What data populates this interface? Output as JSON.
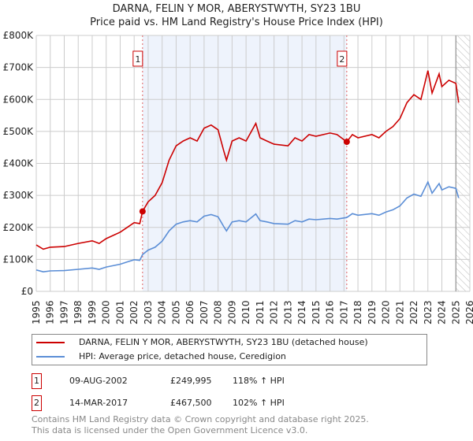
{
  "title": "DARNA, FELIN Y MOR, ABERYSTWYTH, SY23 1BU",
  "subtitle": "Price paid vs. HM Land Registry's House Price Index (HPI)",
  "colors": {
    "property": "#cc0000",
    "hpi": "#5b8ed6",
    "shade": "#eef3fc"
  },
  "chart_data": {
    "type": "line",
    "ylim": [
      0,
      800000
    ],
    "xlim": [
      1995,
      2026
    ],
    "yticks": [
      {
        "v": 0,
        "label": "£0"
      },
      {
        "v": 100000,
        "label": "£100K"
      },
      {
        "v": 200000,
        "label": "£200K"
      },
      {
        "v": 300000,
        "label": "£300K"
      },
      {
        "v": 400000,
        "label": "£400K"
      },
      {
        "v": 500000,
        "label": "£500K"
      },
      {
        "v": 600000,
        "label": "£600K"
      },
      {
        "v": 700000,
        "label": "£700K"
      },
      {
        "v": 800000,
        "label": "£800K"
      }
    ],
    "xticks": [
      "1995",
      "1996",
      "1997",
      "1998",
      "1999",
      "2000",
      "2001",
      "2002",
      "2003",
      "2004",
      "2005",
      "2006",
      "2007",
      "2008",
      "2009",
      "2010",
      "2011",
      "2012",
      "2013",
      "2014",
      "2015",
      "2016",
      "2017",
      "2018",
      "2019",
      "2020",
      "2021",
      "2022",
      "2023",
      "2024",
      "2025",
      "2026"
    ],
    "x": [
      1995,
      1995.5,
      1996,
      1997,
      1998,
      1999,
      1999.5,
      2000,
      2001,
      2001.5,
      2002,
      2002.4,
      2002.6,
      2003,
      2003.5,
      2004,
      2004.5,
      2005,
      2005.5,
      2006,
      2006.5,
      2007,
      2007.5,
      2008,
      2008.4,
      2008.6,
      2009,
      2009.5,
      2010,
      2010.7,
      2011,
      2011.5,
      2012,
      2013,
      2013.5,
      2014,
      2014.5,
      2015,
      2016,
      2016.5,
      2017.2,
      2017.6,
      2018,
      2019,
      2019.5,
      2020,
      2020.5,
      2021,
      2021.5,
      2022,
      2022.5,
      2023,
      2023.3,
      2023.8,
      2024,
      2024.5,
      2025,
      2025.2
    ],
    "series": [
      {
        "name": "DARNA, FELIN Y MOR, ABERYSTWYTH, SY23 1BU (detached house)",
        "color": "#cc0000",
        "values": [
          145,
          132,
          138,
          140,
          150,
          158,
          150,
          165,
          185,
          200,
          215,
          212,
          250,
          280,
          300,
          340,
          410,
          455,
          470,
          480,
          470,
          510,
          520,
          505,
          440,
          410,
          470,
          480,
          470,
          525,
          480,
          470,
          460,
          455,
          480,
          470,
          490,
          485,
          495,
          490,
          467.5,
          490,
          480,
          490,
          480,
          500,
          515,
          540,
          590,
          615,
          600,
          690,
          620,
          680,
          640,
          660,
          650,
          590
        ]
      },
      {
        "name": "HPI: Average price, detached house, Ceredigion",
        "color": "#5b8ed6",
        "values": [
          67,
          61,
          64,
          65,
          69,
          73,
          69,
          76,
          85,
          92,
          99,
          97,
          115,
          129,
          138,
          157,
          189,
          210,
          217,
          221,
          217,
          235,
          240,
          233,
          203,
          189,
          217,
          221,
          217,
          242,
          221,
          217,
          212,
          210,
          221,
          217,
          226,
          224,
          228,
          226,
          231,
          243,
          238,
          243,
          238,
          248,
          255,
          267,
          292,
          304,
          297,
          342,
          307,
          337,
          317,
          327,
          322,
          292
        ]
      }
    ],
    "value_unit": "thousands GBP",
    "sales": [
      {
        "id": "1",
        "x": 2002.6,
        "value": 249995
      },
      {
        "id": "2",
        "x": 2017.2,
        "value": 467500
      }
    ],
    "shaded_range": [
      2002.6,
      2017.2
    ],
    "forecast_hatch_from": 2025.0
  },
  "legend": {
    "property": "DARNA, FELIN Y MOR, ABERYSTWYTH, SY23 1BU (detached house)",
    "hpi": "HPI: Average price, detached house, Ceredigion"
  },
  "transactions": [
    {
      "id": "1",
      "date": "09-AUG-2002",
      "price": "£249,995",
      "hpi": "118% ↑ HPI"
    },
    {
      "id": "2",
      "date": "14-MAR-2017",
      "price": "£467,500",
      "hpi": "102% ↑ HPI"
    }
  ],
  "footer": [
    "Contains HM Land Registry data © Crown copyright and database right 2025.",
    "This data is licensed under the Open Government Licence v3.0."
  ]
}
